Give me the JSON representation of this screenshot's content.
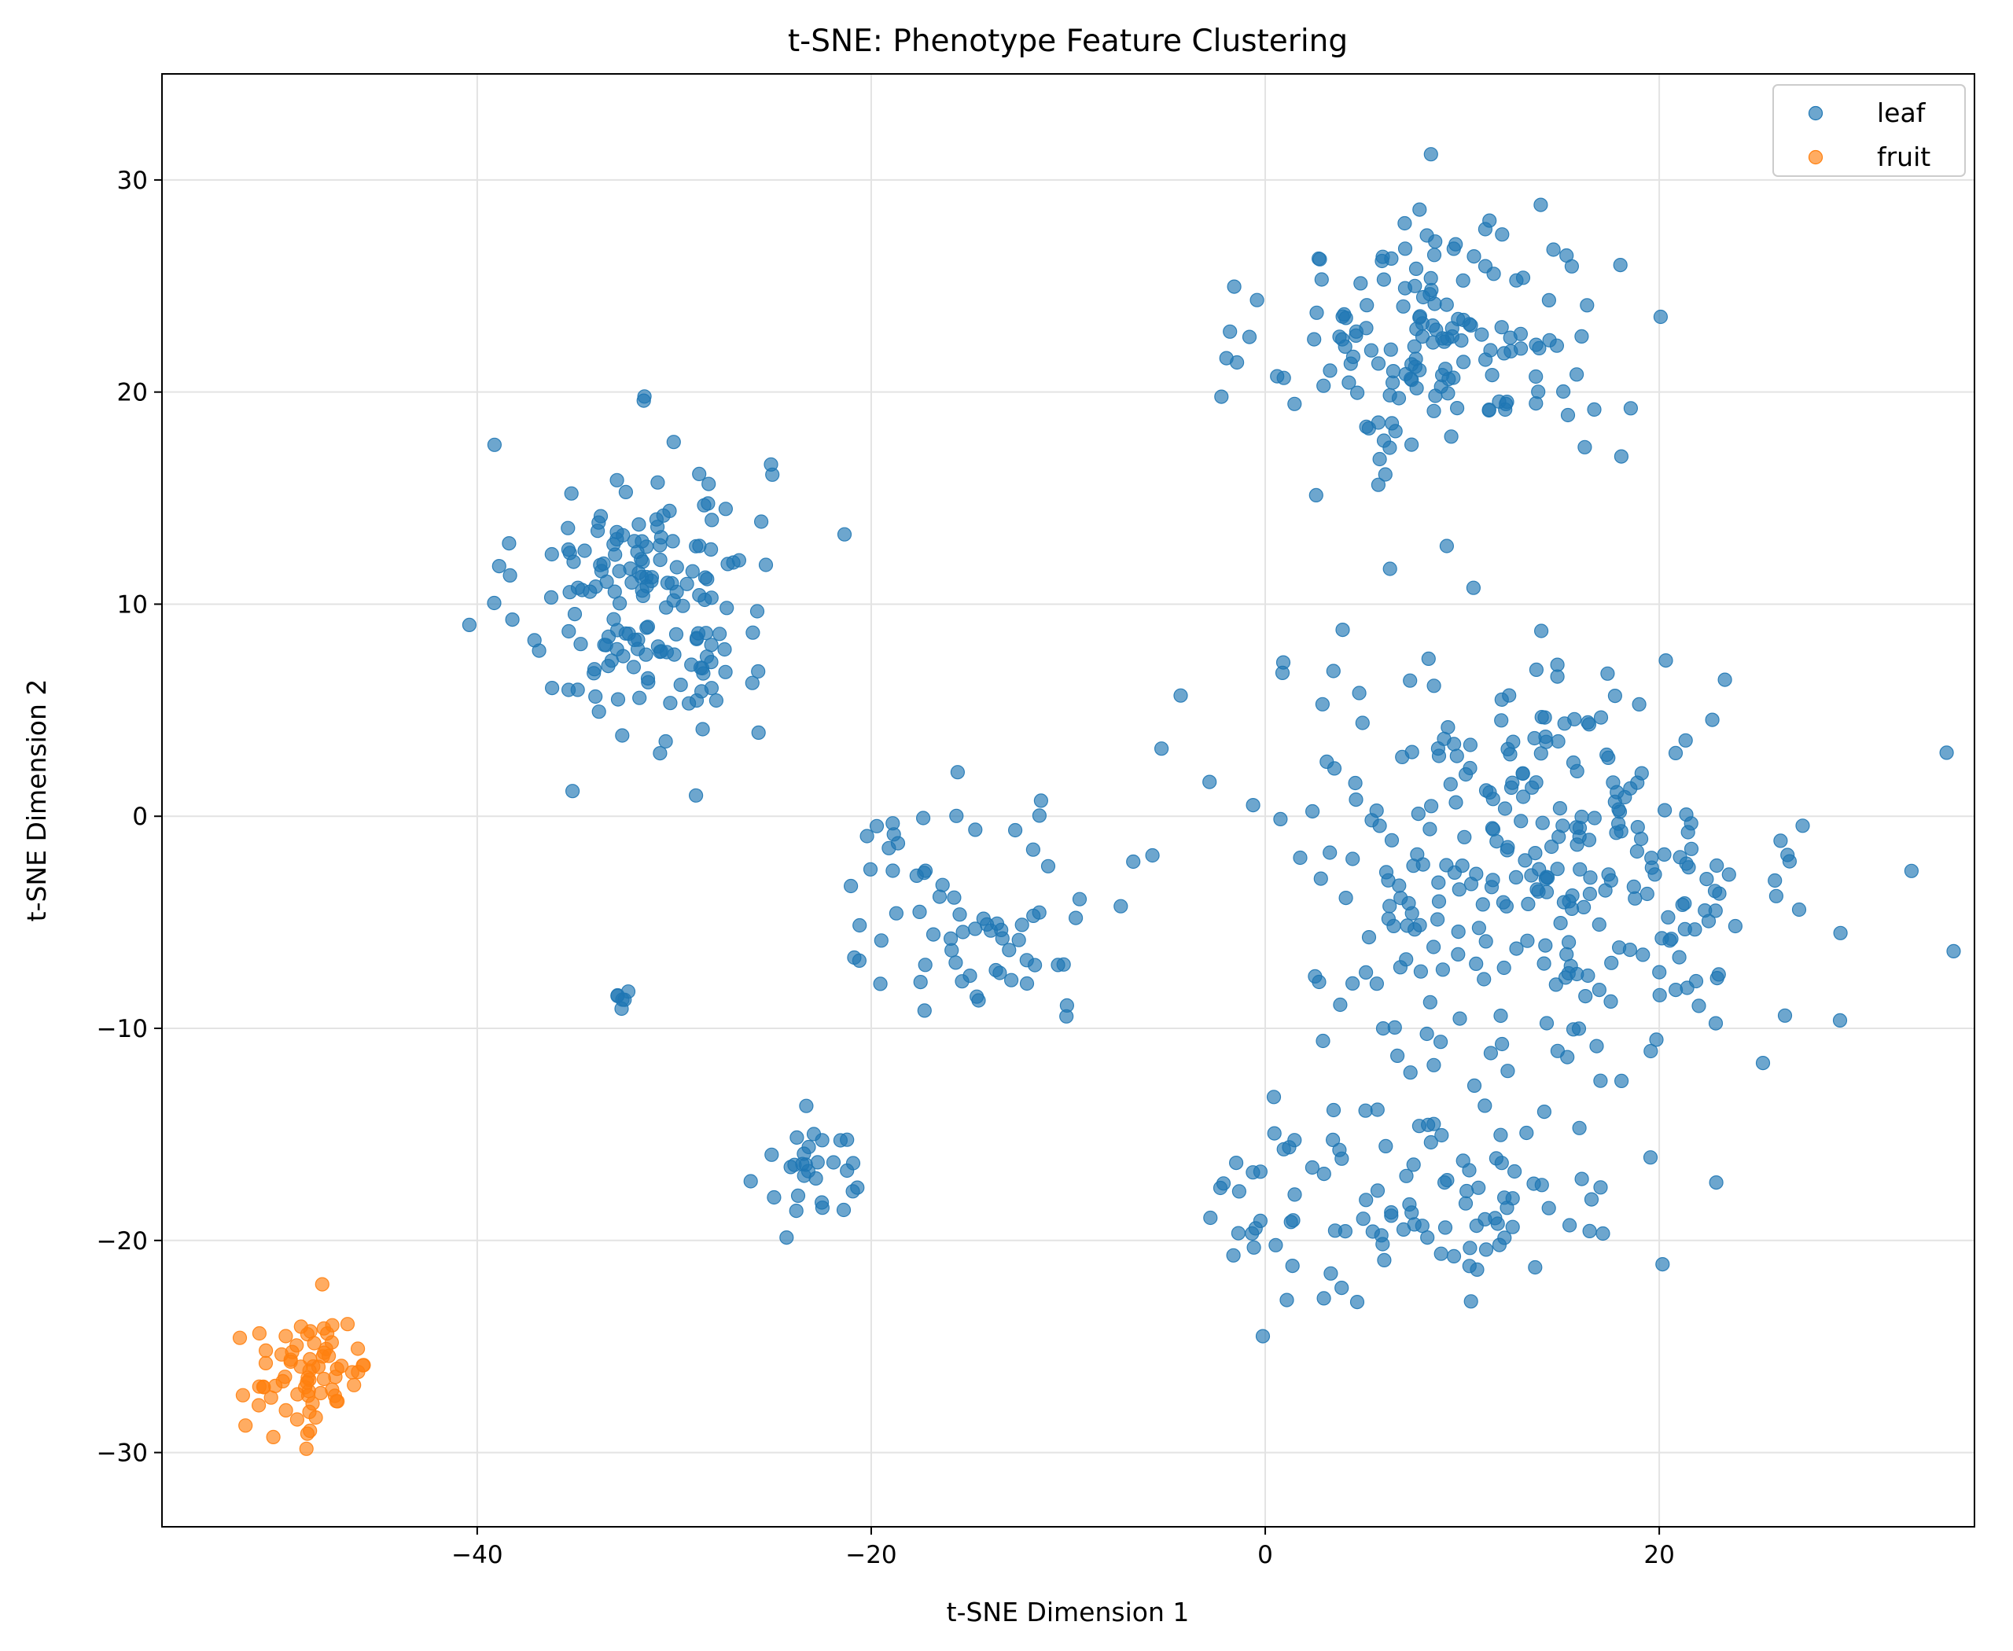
{
  "chart_data": {
    "type": "scatter",
    "title": "t-SNE: Phenotype Feature Clustering",
    "xlabel": "t-SNE Dimension 1",
    "ylabel": "t-SNE Dimension 2",
    "xlim": [
      -56,
      36
    ],
    "ylim": [
      -33.5,
      35
    ],
    "xticks": [
      -40,
      -20,
      0,
      20
    ],
    "yticks": [
      -30,
      -20,
      -10,
      0,
      10,
      20,
      30
    ],
    "grid": true,
    "legend_position": "top-right",
    "marker_opacity": 0.65,
    "series": [
      {
        "name": "leaf",
        "color": "#1f77b4",
        "clusters": [
          {
            "center": [
              -31.5,
              10.5
            ],
            "spread": [
              4.2,
              4.8
            ],
            "count": 170
          },
          {
            "center": [
              9.0,
              22.5
            ],
            "spread": [
              5.8,
              4.3
            ],
            "count": 160
          },
          {
            "center": [
              14.0,
              -2.0
            ],
            "spread": [
              9.5,
              6.5
            ],
            "count": 300
          },
          {
            "center": [
              8.0,
              -18.0
            ],
            "spread": [
              7.0,
              3.5
            ],
            "count": 110
          },
          {
            "center": [
              -15.0,
              -4.5
            ],
            "spread": [
              5.5,
              3.4
            ],
            "count": 70
          },
          {
            "center": [
              -23.0,
              -16.5
            ],
            "spread": [
              1.8,
              1.6
            ],
            "count": 30
          },
          {
            "center": [
              -32.5,
              -8.6
            ],
            "spread": [
              0.5,
              0.4
            ],
            "count": 6
          }
        ]
      },
      {
        "name": "fruit",
        "color": "#ff7f0e",
        "clusters": [
          {
            "center": [
              -48.5,
              -26.3
            ],
            "spread": [
              2.3,
              2.0
            ],
            "count": 70
          }
        ]
      }
    ]
  }
}
